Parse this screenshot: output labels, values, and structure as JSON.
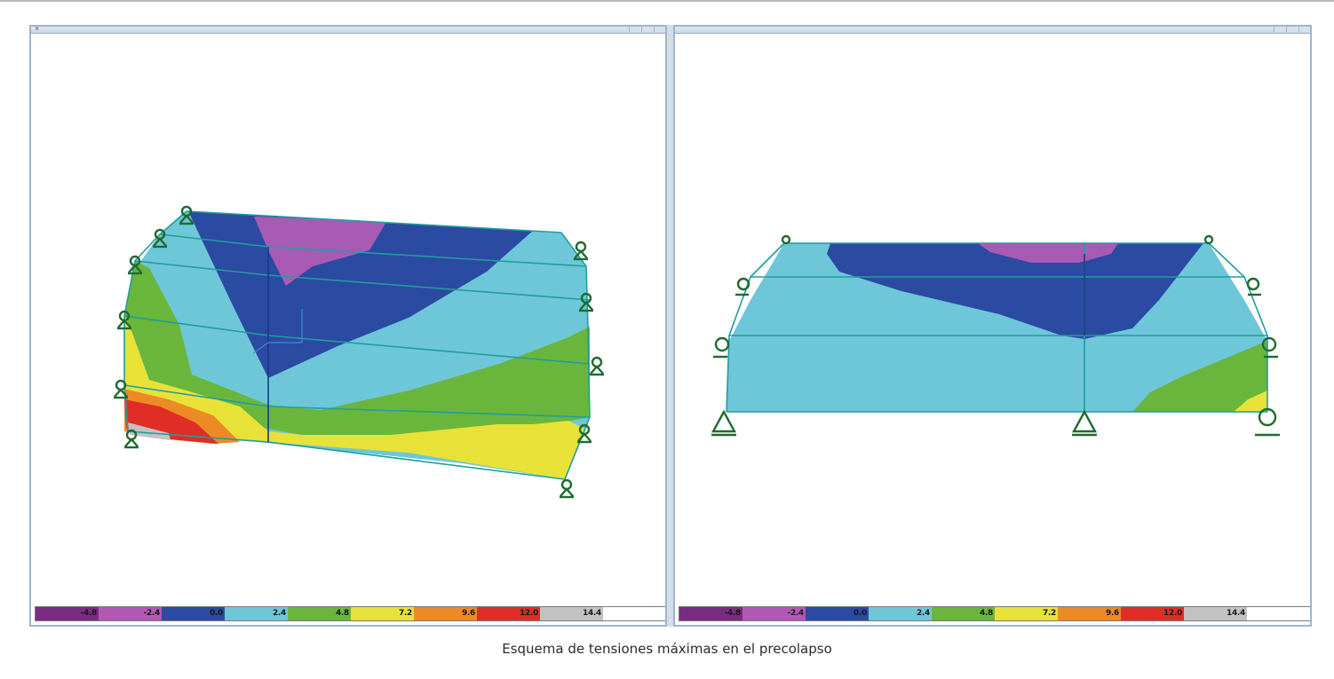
{
  "caption": "Esquema de tensiones máximas en el precolapso",
  "legend": {
    "colors": [
      "#7b2b84",
      "#b357b6",
      "#2b4aa2",
      "#6ec7d8",
      "#6ab63c",
      "#e8e238",
      "#ee8a26",
      "#e02d26",
      "#c2c2c2",
      "#ffffff"
    ],
    "labels": [
      "-4.8",
      "-2.4",
      "0.0",
      "2.4",
      "4.8",
      "7.2",
      "9.6",
      "12.0",
      "14.4",
      ""
    ]
  },
  "colors": {
    "purple": "#a85bb4",
    "dark_blue": "#2b4aa2",
    "light_blue": "#6ec7d8",
    "green": "#6ab63c",
    "yellow": "#e8e238",
    "orange": "#ee8a26",
    "red": "#e02d26",
    "grey": "#c2c2c2",
    "support": "#1f6b2f",
    "mesh": "#1f9e9e",
    "window_border": "#9fb4cc"
  },
  "icons": {
    "support": "pin-support-icon",
    "axis": "axis-triad-icon"
  }
}
